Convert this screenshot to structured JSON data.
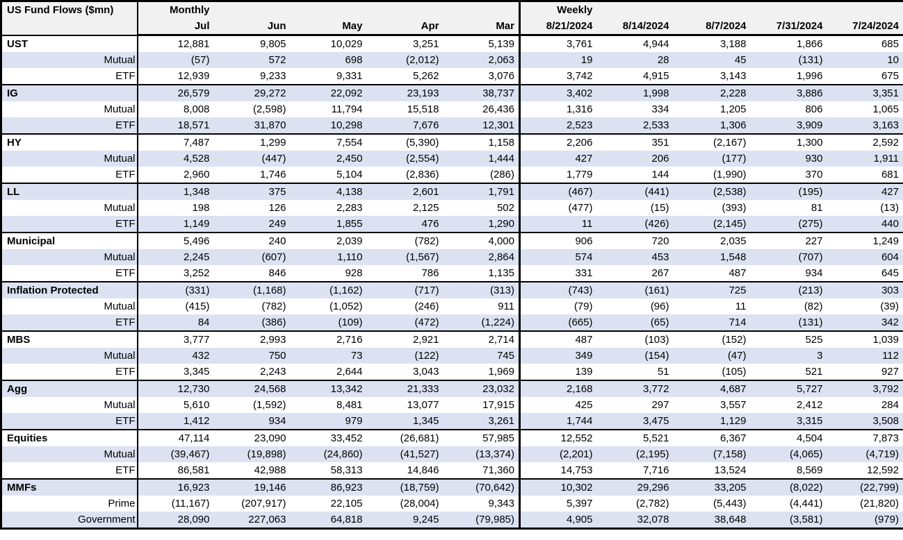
{
  "title": "US Fund Flows ($mn)",
  "colors": {
    "stripe": "#dce2f1",
    "header_bg": "#f1f1f1",
    "border": "#000000",
    "text": "#000000"
  },
  "sections": [
    {
      "label": "Monthly",
      "columns": [
        "Jul",
        "Jun",
        "May",
        "Apr",
        "Mar"
      ]
    },
    {
      "label": "Weekly",
      "columns": [
        "8/21/2024",
        "8/14/2024",
        "8/7/2024",
        "7/31/2024",
        "7/24/2024"
      ]
    }
  ],
  "chart_data": {
    "type": "table",
    "title": "US Fund Flows ($mn)",
    "column_groups": [
      "Monthly",
      "Weekly"
    ],
    "columns": [
      "Jul",
      "Jun",
      "May",
      "Apr",
      "Mar",
      "8/21/2024",
      "8/14/2024",
      "8/7/2024",
      "7/31/2024",
      "7/24/2024"
    ],
    "number_format": "negatives-in-parentheses, thousands-comma",
    "rows": [
      {
        "label": "UST",
        "level": "group",
        "values": [
          12881,
          9805,
          10029,
          3251,
          5139,
          3761,
          4944,
          3188,
          1866,
          685
        ]
      },
      {
        "label": "Mutual",
        "level": "sub",
        "values": [
          -57,
          572,
          698,
          -2012,
          2063,
          19,
          28,
          45,
          -131,
          10
        ]
      },
      {
        "label": "ETF",
        "level": "sub",
        "values": [
          12939,
          9233,
          9331,
          5262,
          3076,
          3742,
          4915,
          3143,
          1996,
          675
        ]
      },
      {
        "label": "IG",
        "level": "group",
        "values": [
          26579,
          29272,
          22092,
          23193,
          38737,
          3402,
          1998,
          2228,
          3886,
          3351
        ]
      },
      {
        "label": "Mutual",
        "level": "sub",
        "values": [
          8008,
          -2598,
          11794,
          15518,
          26436,
          1316,
          334,
          1205,
          806,
          1065
        ]
      },
      {
        "label": "ETF",
        "level": "sub",
        "values": [
          18571,
          31870,
          10298,
          7676,
          12301,
          2523,
          2533,
          1306,
          3909,
          3163
        ]
      },
      {
        "label": "HY",
        "level": "group",
        "values": [
          7487,
          1299,
          7554,
          -5390,
          1158,
          2206,
          351,
          -2167,
          1300,
          2592
        ]
      },
      {
        "label": "Mutual",
        "level": "sub",
        "values": [
          4528,
          -447,
          2450,
          -2554,
          1444,
          427,
          206,
          -177,
          930,
          1911
        ]
      },
      {
        "label": "ETF",
        "level": "sub",
        "values": [
          2960,
          1746,
          5104,
          -2836,
          -286,
          1779,
          144,
          -1990,
          370,
          681
        ]
      },
      {
        "label": "LL",
        "level": "group",
        "values": [
          1348,
          375,
          4138,
          2601,
          1791,
          -467,
          -441,
          -2538,
          -195,
          427
        ]
      },
      {
        "label": "Mutual",
        "level": "sub",
        "values": [
          198,
          126,
          2283,
          2125,
          502,
          -477,
          -15,
          -393,
          81,
          -13
        ]
      },
      {
        "label": "ETF",
        "level": "sub",
        "values": [
          1149,
          249,
          1855,
          476,
          1290,
          11,
          -426,
          -2145,
          -275,
          440
        ]
      },
      {
        "label": "Municipal",
        "level": "group",
        "values": [
          5496,
          240,
          2039,
          -782,
          4000,
          906,
          720,
          2035,
          227,
          1249
        ]
      },
      {
        "label": "Mutual",
        "level": "sub",
        "values": [
          2245,
          -607,
          1110,
          -1567,
          2864,
          574,
          453,
          1548,
          -707,
          604
        ]
      },
      {
        "label": "ETF",
        "level": "sub",
        "values": [
          3252,
          846,
          928,
          786,
          1135,
          331,
          267,
          487,
          934,
          645
        ]
      },
      {
        "label": "Inflation Protected",
        "level": "group",
        "values": [
          -331,
          -1168,
          -1162,
          -717,
          -313,
          -743,
          -161,
          725,
          -213,
          303
        ]
      },
      {
        "label": "Mutual",
        "level": "sub",
        "values": [
          -415,
          -782,
          -1052,
          -246,
          911,
          -79,
          -96,
          11,
          -82,
          -39
        ]
      },
      {
        "label": "ETF",
        "level": "sub",
        "values": [
          84,
          -386,
          -109,
          -472,
          -1224,
          -665,
          -65,
          714,
          -131,
          342
        ]
      },
      {
        "label": "MBS",
        "level": "group",
        "values": [
          3777,
          2993,
          2716,
          2921,
          2714,
          487,
          -103,
          -152,
          525,
          1039
        ]
      },
      {
        "label": "Mutual",
        "level": "sub",
        "values": [
          432,
          750,
          73,
          -122,
          745,
          349,
          -154,
          -47,
          3,
          112
        ]
      },
      {
        "label": "ETF",
        "level": "sub",
        "values": [
          3345,
          2243,
          2644,
          3043,
          1969,
          139,
          51,
          -105,
          521,
          927
        ]
      },
      {
        "label": "Agg",
        "level": "group",
        "values": [
          12730,
          24568,
          13342,
          21333,
          23032,
          2168,
          3772,
          4687,
          5727,
          3792
        ]
      },
      {
        "label": "Mutual",
        "level": "sub",
        "values": [
          5610,
          -1592,
          8481,
          13077,
          17915,
          425,
          297,
          3557,
          2412,
          284
        ]
      },
      {
        "label": "ETF",
        "level": "sub",
        "values": [
          1412,
          934,
          979,
          1345,
          3261,
          1744,
          3475,
          1129,
          3315,
          3508
        ]
      },
      {
        "label": "Equities",
        "level": "group",
        "values": [
          47114,
          23090,
          33452,
          -26681,
          57985,
          12552,
          5521,
          6367,
          4504,
          7873
        ]
      },
      {
        "label": "Mutual",
        "level": "sub",
        "values": [
          -39467,
          -19898,
          -24860,
          -41527,
          -13374,
          -2201,
          -2195,
          -7158,
          -4065,
          -4719
        ]
      },
      {
        "label": "ETF",
        "level": "sub",
        "values": [
          86581,
          42988,
          58313,
          14846,
          71360,
          14753,
          7716,
          13524,
          8569,
          12592
        ]
      },
      {
        "label": "MMFs",
        "level": "group",
        "values": [
          16923,
          19146,
          86923,
          -18759,
          -70642,
          10302,
          29296,
          33205,
          -8022,
          -22799
        ]
      },
      {
        "label": "Prime",
        "level": "sub",
        "values": [
          -11167,
          -207917,
          22105,
          -28004,
          9343,
          5397,
          -2782,
          -5443,
          -4441,
          -21820
        ]
      },
      {
        "label": "Government",
        "level": "sub",
        "values": [
          28090,
          227063,
          64818,
          9245,
          -79985,
          4905,
          32078,
          38648,
          -3581,
          -979
        ]
      }
    ]
  }
}
